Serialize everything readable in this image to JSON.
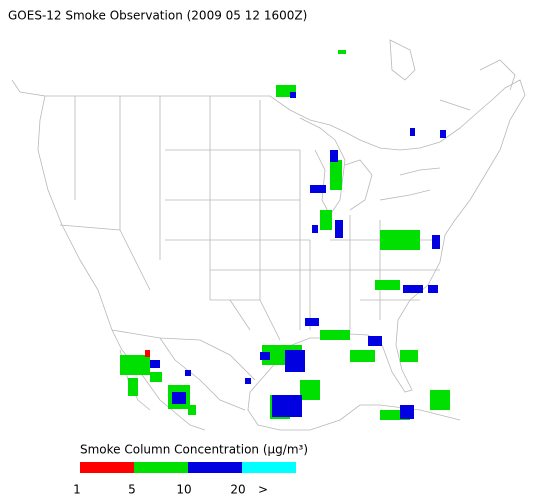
{
  "title": "GOES-12 Smoke Observation (2009 05 12  1600Z)",
  "legend": {
    "title": "Smoke Column Concentration (μg/m³)",
    "colors": [
      "#ff0000",
      "#00e000",
      "#0000e0",
      "#00ffff"
    ],
    "labels": [
      "1",
      "5",
      "10",
      "20",
      ">"
    ]
  }
}
